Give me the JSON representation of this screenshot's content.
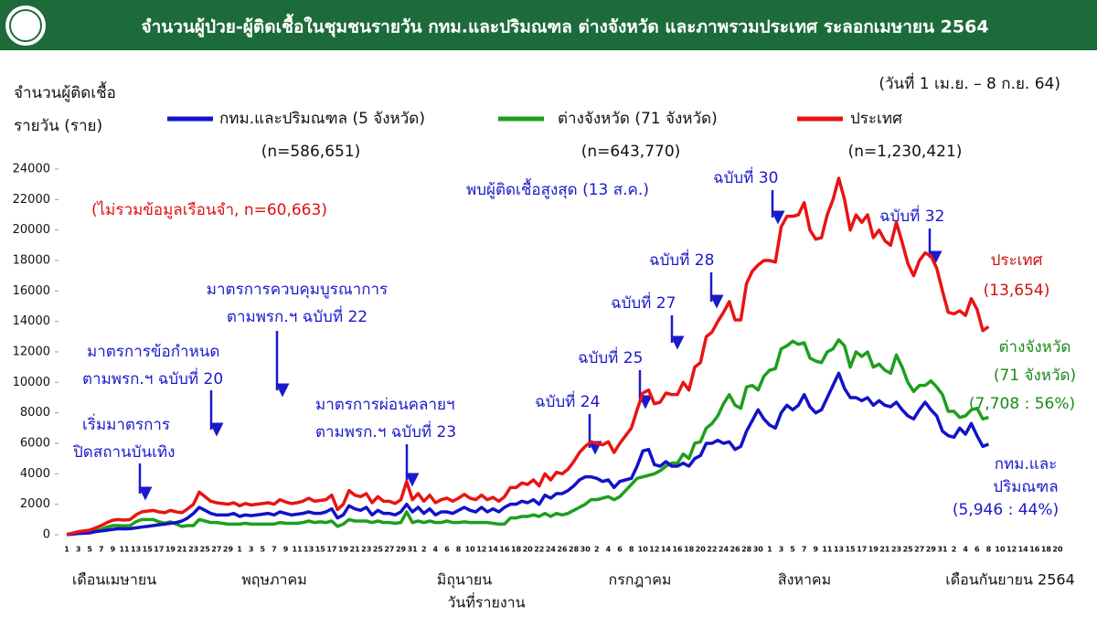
{
  "header": {
    "title": "จำนวนผู้ป่วย-ผู้ติดเชื้อในชุมชนรายวัน กทม.และปริมณฑล ต่างจังหวัด และภาพรวมประเทศ ระลอกเมษายน 2564"
  },
  "chart_data": {
    "type": "line",
    "date_range": "(วันที่ 1 เม.ย. – 8 ก.ย. 64)",
    "y_label": [
      "จำนวนผู้ติดเชื้อ",
      "รายวัน (ราย)"
    ],
    "note": "(ไม่รวมข้อมูลเรือนจำ, n=60,663)",
    "x_label": "วันที่รายงาน",
    "month_labels": [
      "เดือนเมษายน",
      "พฤษภาคม",
      "มิถุนายน",
      "กรกฎาคม",
      "สิงหาคม",
      "เดือนกันยายน 2564"
    ],
    "categories": [
      "1",
      null,
      "3",
      null,
      "5",
      null,
      "7",
      null,
      "9",
      null,
      "11",
      null,
      "13",
      null,
      "15",
      null,
      "17",
      null,
      "19",
      null,
      "21",
      null,
      "23",
      null,
      "25",
      null,
      "27",
      null,
      "29",
      null,
      "1",
      null,
      "3",
      null,
      "5",
      null,
      "7",
      null,
      "9",
      null,
      "11",
      null,
      "13",
      null,
      "15",
      null,
      "17",
      null,
      "19",
      null,
      "21",
      null,
      "23",
      null,
      "25",
      null,
      "27",
      null,
      "29",
      null,
      "31",
      null,
      "2",
      null,
      "4",
      null,
      "6",
      null,
      "8",
      null,
      "10",
      null,
      "12",
      null,
      "14",
      null,
      "16",
      null,
      "18",
      null,
      "20",
      null,
      "22",
      null,
      "24",
      null,
      "26",
      null,
      "28",
      null,
      "30",
      null,
      "2",
      null,
      "4",
      null,
      "6",
      null,
      "8",
      null,
      "10",
      null,
      "12",
      null,
      "14",
      null,
      "16",
      null,
      "18",
      null,
      "20",
      null,
      "22",
      null,
      "24",
      null,
      "26",
      null,
      "28",
      null,
      "30",
      null,
      "1",
      null,
      "3",
      null,
      "5",
      null,
      "7",
      null,
      "9",
      null,
      "11",
      null,
      "13",
      null,
      "15",
      null,
      "17",
      null,
      "19",
      null,
      "21",
      null,
      "23",
      null,
      "25",
      null,
      "27",
      null,
      "29",
      null,
      "31",
      null,
      "2",
      null,
      "4",
      null,
      "6",
      null,
      "8",
      null,
      "10",
      null,
      "12",
      null,
      "14",
      null,
      "16",
      null,
      "18",
      null,
      "20"
    ],
    "series": [
      {
        "name": "กทม.และปริมณฑล (5 จังหวัด)",
        "n_label": "(n=586,651)",
        "color": "#1212c8",
        "end_labels": [
          "กทม.และ",
          "ปริมณฑล",
          "(5,946 : 44%)"
        ],
        "values": [
          10,
          40,
          80,
          100,
          120,
          200,
          250,
          300,
          350,
          400,
          380,
          400,
          450,
          500,
          550,
          600,
          650,
          700,
          750,
          800,
          900,
          1100,
          1400,
          1800,
          1600,
          1400,
          1300,
          1300,
          1300,
          1400,
          1200,
          1300,
          1250,
          1300,
          1350,
          1400,
          1300,
          1500,
          1400,
          1300,
          1350,
          1400,
          1500,
          1400,
          1400,
          1500,
          1700,
          1100,
          1300,
          1900,
          1700,
          1600,
          1800,
          1300,
          1600,
          1400,
          1400,
          1300,
          1500,
          2000,
          1500,
          1800,
          1400,
          1700,
          1300,
          1500,
          1500,
          1400,
          1600,
          1800,
          1600,
          1500,
          1800,
          1500,
          1700,
          1500,
          1800,
          2000,
          2000,
          2200,
          2100,
          2300,
          2000,
          2600,
          2400,
          2700,
          2700,
          2900,
          3200,
          3600,
          3800,
          3800,
          3700,
          3500,
          3600,
          3100,
          3500,
          3600,
          3700,
          4500,
          5500,
          5600,
          4600,
          4500,
          4800,
          4500,
          4500,
          4700,
          4500,
          5000,
          5200,
          6000,
          6000,
          6200,
          6000,
          6100,
          5600,
          5800,
          6800,
          7500,
          8200,
          7600,
          7200,
          7000,
          8000,
          8500,
          8200,
          8500,
          9200,
          8400,
          8000,
          8200,
          9000,
          9800,
          10600,
          9600,
          9000,
          9000,
          8800,
          9000,
          8500,
          8800,
          8500,
          8400,
          8700,
          8200,
          7800,
          7600,
          8200,
          8700,
          8200,
          7800,
          6800,
          6500,
          6400,
          7000,
          6600,
          7300,
          6500,
          5800,
          5946,
          null,
          null,
          null,
          null,
          null,
          null,
          null,
          null,
          null,
          null,
          null,
          null
        ]
      },
      {
        "name": "ต่างจังหวัด (71 จังหวัด)",
        "n_label": "(n=643,770)",
        "color": "#1e9e1e",
        "end_labels": [
          "ต่างจังหวัด",
          "(71 จังหวัด)",
          "(7,708 : 56%)"
        ],
        "values": [
          16,
          60,
          120,
          150,
          180,
          250,
          350,
          500,
          600,
          600,
          580,
          600,
          850,
          1000,
          1000,
          1000,
          850,
          750,
          850,
          700,
          550,
          600,
          600,
          1000,
          900,
          800,
          800,
          750,
          700,
          700,
          700,
          750,
          700,
          700,
          700,
          700,
          700,
          800,
          750,
          750,
          750,
          800,
          900,
          800,
          850,
          800,
          900,
          550,
          700,
          1000,
          900,
          900,
          900,
          800,
          900,
          800,
          800,
          750,
          800,
          1500,
          800,
          900,
          800,
          900,
          800,
          800,
          900,
          800,
          800,
          850,
          800,
          800,
          800,
          800,
          750,
          700,
          700,
          1100,
          1100,
          1200,
          1200,
          1300,
          1200,
          1400,
          1200,
          1400,
          1300,
          1400,
          1600,
          1800,
          2000,
          2300,
          2300,
          2400,
          2500,
          2300,
          2500,
          2900,
          3300,
          3700,
          3800,
          3900,
          4000,
          4200,
          4500,
          4700,
          4700,
          5300,
          5000,
          6000,
          6100,
          7000,
          7300,
          7800,
          8600,
          9200,
          8500,
          8300,
          9700,
          9800,
          9500,
          10400,
          10800,
          10900,
          12200,
          12400,
          12700,
          12500,
          12600,
          11600,
          11400,
          11300,
          12000,
          12200,
          12800,
          12400,
          11000,
          12000,
          11700,
          12000,
          11000,
          11200,
          10800,
          10600,
          11800,
          11000,
          10000,
          9400,
          9800,
          9800,
          10100,
          9700,
          9200,
          8100,
          8100,
          7700,
          7800,
          8200,
          8300,
          7600,
          7708,
          null,
          null,
          null,
          null,
          null,
          null,
          null,
          null,
          null,
          null,
          null,
          null
        ]
      },
      {
        "name": "ประเทศ",
        "n_label": "(n=1,230,421)",
        "color": "#e81414",
        "end_labels": [
          "ประเทศ",
          "(13,654)"
        ],
        "values": [
          26,
          100,
          200,
          250,
          300,
          450,
          600,
          800,
          950,
          1000,
          960,
          1000,
          1300,
          1500,
          1550,
          1600,
          1500,
          1450,
          1600,
          1500,
          1450,
          1700,
          2000,
          2800,
          2500,
          2200,
          2100,
          2050,
          2000,
          2100,
          1900,
          2050,
          1950,
          2000,
          2050,
          2100,
          2000,
          2300,
          2150,
          2050,
          2100,
          2200,
          2400,
          2200,
          2250,
          2300,
          2600,
          1650,
          2000,
          2900,
          2600,
          2500,
          2700,
          2100,
          2500,
          2200,
          2200,
          2050,
          2300,
          3500,
          2300,
          2700,
          2200,
          2600,
          2100,
          2300,
          2400,
          2200,
          2400,
          2650,
          2400,
          2300,
          2600,
          2300,
          2450,
          2200,
          2500,
          3100,
          3100,
          3400,
          3300,
          3600,
          3200,
          4000,
          3600,
          4100,
          4000,
          4300,
          4800,
          5400,
          5800,
          6100,
          6000,
          5900,
          6100,
          5400,
          6000,
          6500,
          7000,
          8200,
          9300,
          9500,
          8600,
          8700,
          9300,
          9200,
          9200,
          10000,
          9500,
          11000,
          11300,
          13000,
          13300,
          14000,
          14600,
          15300,
          14100,
          14100,
          16500,
          17300,
          17700,
          18000,
          18000,
          17900,
          20200,
          20900,
          20900,
          21000,
          21800,
          20000,
          19400,
          19500,
          21000,
          22000,
          23400,
          22000,
          20000,
          21000,
          20500,
          21000,
          19500,
          20000,
          19300,
          19000,
          20500,
          19200,
          17800,
          17000,
          18000,
          18500,
          18300,
          17500,
          16000,
          14600,
          14500,
          14700,
          14400,
          15500,
          14800,
          13400,
          13654,
          null,
          null,
          null,
          null,
          null,
          null,
          null,
          null,
          null,
          null,
          null,
          null
        ]
      }
    ],
    "annotations": [
      {
        "lines": [
          "เริ่มมาตรการ",
          "ปิดสถานบันเทิง"
        ]
      },
      {
        "lines": [
          "มาตรการข้อกำหนด",
          "ตามพรก.ฯ ฉบับที่ 20"
        ]
      },
      {
        "lines": [
          "มาตรการควบคุมบูรณาการ",
          "ตามพรก.ฯ ฉบับที่ 22"
        ]
      },
      {
        "lines": [
          "มาตรการผ่อนคลายฯ",
          "ตามพรก.ฯ ฉบับที่ 23"
        ]
      },
      {
        "lines": [
          "ฉบับที่ 24"
        ]
      },
      {
        "lines": [
          "ฉบับที่ 25"
        ]
      },
      {
        "lines": [
          "ฉบับที่ 27"
        ]
      },
      {
        "lines": [
          "ฉบับที่ 28"
        ]
      },
      {
        "lines": [
          "พบผู้ติดเชื้อสูงสุด (13 ส.ค.)"
        ]
      },
      {
        "lines": [
          "ฉบับที่ 30"
        ]
      },
      {
        "lines": [
          "ฉบับที่ 32"
        ]
      }
    ],
    "ylim": [
      0,
      24000
    ],
    "yticks": [
      0,
      2000,
      4000,
      6000,
      8000,
      10000,
      12000,
      14000,
      16000,
      18000,
      20000,
      22000,
      24000
    ]
  }
}
